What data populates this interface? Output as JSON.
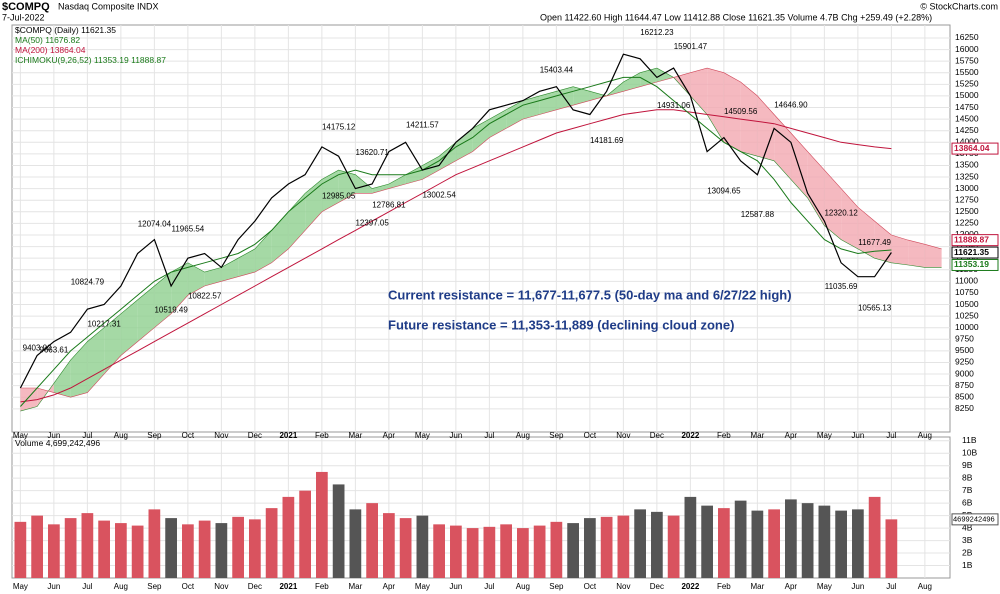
{
  "header": {
    "symbol": "$COMPQ",
    "name": "Nasdaq Composite INDX",
    "date": "7-Jul-2022",
    "quote": "Open 11422.60 High 11644.47 Low 11412.88 Close 11621.35 Volume 4.7B Chg +259.49 (+2.28%)",
    "credit": "© StockCharts.com"
  },
  "chart_data": [
    {
      "type": "line",
      "categories": [
        "May",
        null,
        "Jun",
        null,
        "Jul",
        null,
        "Aug",
        null,
        "Sep",
        null,
        "Oct",
        null,
        "Nov",
        null,
        "Dec",
        null,
        "2021",
        null,
        "Feb",
        null,
        "Mar",
        null,
        "Apr",
        null,
        "May",
        null,
        "Jun",
        null,
        "Jul",
        null,
        "Aug",
        null,
        "Sep",
        null,
        "Oct",
        null,
        "Nov",
        null,
        "Dec",
        null,
        "2022",
        null,
        "Feb",
        null,
        "Mar",
        null,
        "Apr",
        null,
        "May",
        null,
        "Jun",
        null,
        "Jul",
        null,
        "Aug",
        null
      ],
      "ylim": [
        7750,
        16530
      ],
      "yticks": [
        8250,
        8500,
        8750,
        9000,
        9250,
        9500,
        9750,
        10000,
        10250,
        10500,
        10750,
        11000,
        11250,
        11500,
        11750,
        12000,
        12250,
        12500,
        12750,
        13000,
        13250,
        13500,
        13750,
        14000,
        14250,
        14500,
        14750,
        15000,
        15250,
        15500,
        15750,
        16000,
        16250
      ],
      "grid": true,
      "series": [
        {
          "name": "$COMPQ (Daily)",
          "last": 11621.35,
          "color": "#000000",
          "values": [
            8700,
            9400,
            9700,
            9900,
            10400,
            10500,
            10900,
            11600,
            11900,
            10900,
            11500,
            11600,
            11300,
            11900,
            12300,
            12800,
            13100,
            13300,
            13900,
            13700,
            13000,
            13100,
            13800,
            14000,
            13400,
            13500,
            14000,
            14300,
            14700,
            14800,
            14900,
            15100,
            15200,
            14700,
            14600,
            15100,
            15900,
            15800,
            15400,
            15600,
            15000,
            13800,
            14100,
            13600,
            13300,
            14300,
            14000,
            12900,
            12300,
            11400,
            11100,
            11100,
            11621.35,
            null,
            null,
            null
          ]
        },
        {
          "name": "MA(50)",
          "last": 11676.82,
          "color": "#1a7a1a",
          "values": [
            8300,
            8700,
            9100,
            9500,
            9800,
            10100,
            10400,
            10700,
            11000,
            11200,
            11300,
            11400,
            11500,
            11600,
            11800,
            12100,
            12500,
            12800,
            13100,
            13300,
            13400,
            13300,
            13300,
            13300,
            13400,
            13600,
            13900,
            14100,
            14400,
            14600,
            14800,
            14900,
            15000,
            15100,
            15200,
            15300,
            15400,
            15400,
            15200,
            14900,
            14600,
            14300,
            14000,
            13800,
            13600,
            13200,
            12700,
            12300,
            11900,
            11700,
            11600,
            11650,
            11676.82,
            null,
            null,
            null
          ]
        },
        {
          "name": "MA(200)",
          "last": 13864.04,
          "color": "#c0143c",
          "values": [
            8400,
            8450,
            8550,
            8700,
            8900,
            9100,
            9300,
            9500,
            9700,
            9900,
            10100,
            10300,
            10500,
            10700,
            10900,
            11100,
            11300,
            11500,
            11700,
            11900,
            12100,
            12300,
            12500,
            12700,
            12900,
            13100,
            13300,
            13450,
            13600,
            13750,
            13900,
            14050,
            14200,
            14300,
            14400,
            14500,
            14600,
            14650,
            14700,
            14700,
            14650,
            14600,
            14550,
            14500,
            14450,
            14400,
            14300,
            14200,
            14100,
            14000,
            13950,
            13900,
            13864.04,
            null,
            null,
            null
          ]
        }
      ],
      "cloud": {
        "name": "ICHIMOKU(9,26,52)",
        "last": [
          11353.19,
          11888.87
        ],
        "up_color": "#8fcf8f",
        "down_color": "#f2a7b0",
        "span_a": [
          8200,
          8300,
          8800,
          9300,
          9700,
          10000,
          10300,
          10600,
          10900,
          11200,
          11400,
          11200,
          11300,
          11500,
          11700,
          12100,
          12500,
          12900,
          13200,
          13400,
          13300,
          13000,
          13100,
          13300,
          13500,
          13700,
          14000,
          14300,
          14500,
          14700,
          14900,
          15000,
          15100,
          15200,
          15100,
          15000,
          15300,
          15500,
          15600,
          15400,
          15000,
          14600,
          14000,
          13800,
          13700,
          13600,
          13200,
          12800,
          12200,
          11900,
          11700,
          11500,
          11400,
          11353.19,
          11300,
          11300
        ],
        "span_b": [
          8700,
          8700,
          8600,
          8500,
          8600,
          9000,
          9400,
          9700,
          10000,
          10300,
          10700,
          10900,
          11000,
          11100,
          11200,
          11400,
          11700,
          12100,
          12500,
          12700,
          12900,
          12900,
          13000,
          13100,
          13200,
          13400,
          13600,
          13800,
          14100,
          14300,
          14500,
          14600,
          14700,
          14800,
          14900,
          15000,
          15100,
          15200,
          15300,
          15400,
          15500,
          15600,
          15500,
          15300,
          15000,
          14600,
          14200,
          13800,
          13400,
          13000,
          12600,
          12300,
          12000,
          11888.87,
          11800,
          11700
        ]
      },
      "price_labels": [
        {
          "value": 13864.04,
          "color": "#c0143c"
        },
        {
          "value": 11888.87,
          "color": "#c0143c"
        },
        {
          "value": 11621.35,
          "color": "#000000"
        },
        {
          "value": 11353.19,
          "color": "#1a7a1a"
        }
      ],
      "annotations": [
        {
          "x": 1,
          "value": 9403.0,
          "label": "9403.00"
        },
        {
          "x": 2,
          "value": 9663.61
        },
        {
          "x": 4,
          "value": 10824.79
        },
        {
          "x": 5,
          "value": 10217.31
        },
        {
          "x": 8,
          "value": 12074.04
        },
        {
          "x": 9,
          "value": 10519.49
        },
        {
          "x": 10,
          "value": 11965.54
        },
        {
          "x": 11,
          "value": 10822.57
        },
        {
          "x": 19,
          "value": 14175.12
        },
        {
          "x": 21,
          "value": 13620.71
        },
        {
          "x": 19,
          "value": 12985.05
        },
        {
          "x": 21,
          "value": 12397.05
        },
        {
          "x": 22,
          "value": 12786.81
        },
        {
          "x": 24,
          "value": 14211.57
        },
        {
          "x": 25,
          "value": 13002.54
        },
        {
          "x": 32,
          "value": 15403.44
        },
        {
          "x": 35,
          "value": 14181.69
        },
        {
          "x": 38,
          "value": 16212.23
        },
        {
          "x": 39,
          "value": 14931.06
        },
        {
          "x": 40,
          "value": 15901.47
        },
        {
          "x": 42,
          "value": 13094.65
        },
        {
          "x": 43,
          "value": 14509.56
        },
        {
          "x": 44,
          "value": 12587.88
        },
        {
          "x": 46,
          "value": 14646.9,
          "label": "14646.90"
        },
        {
          "x": 49,
          "value": 12320.12
        },
        {
          "x": 49,
          "value": 11035.69
        },
        {
          "x": 51,
          "value": 11677.49
        },
        {
          "x": 51,
          "value": 10565.13
        }
      ],
      "notes": [
        "Current resistance = 11,677-11,677.5 (50-day ma and 6/27/22 high)",
        "Future resistance = 11,353-11,889 (declining cloud zone)"
      ]
    },
    {
      "type": "bar",
      "title": "Volume",
      "legend_value": 4699242496,
      "legend_label": "4,699,242,496",
      "up_color": "#d9535f",
      "down_color": "#555555",
      "ylim": [
        0,
        11.3
      ],
      "yticks": [
        {
          "value": 1,
          "label": "1B"
        },
        {
          "value": 2,
          "label": "2B"
        },
        {
          "value": 3,
          "label": "3B"
        },
        {
          "value": 4,
          "label": "4B"
        },
        {
          "value": 5,
          "label": "5B"
        },
        {
          "value": 6,
          "label": "6B"
        },
        {
          "value": 7,
          "label": "7B"
        },
        {
          "value": 8,
          "label": "8B"
        },
        {
          "value": 9,
          "label": "9B"
        },
        {
          "value": 10,
          "label": "10B"
        },
        {
          "value": 11,
          "label": "11B"
        }
      ],
      "values": [
        4.5,
        5.0,
        4.3,
        4.8,
        5.2,
        4.6,
        4.4,
        4.2,
        5.5,
        4.8,
        4.3,
        4.6,
        4.4,
        4.9,
        4.7,
        5.6,
        6.5,
        7.0,
        8.5,
        7.5,
        5.5,
        6.0,
        5.2,
        4.8,
        5.0,
        4.3,
        4.2,
        4.0,
        4.1,
        4.3,
        4.0,
        4.2,
        4.5,
        4.4,
        4.8,
        4.9,
        5.0,
        5.5,
        5.3,
        5.0,
        6.5,
        5.8,
        5.6,
        6.2,
        5.4,
        5.5,
        6.3,
        6.0,
        5.8,
        5.4,
        5.5,
        6.5,
        4.7
      ]
    }
  ]
}
